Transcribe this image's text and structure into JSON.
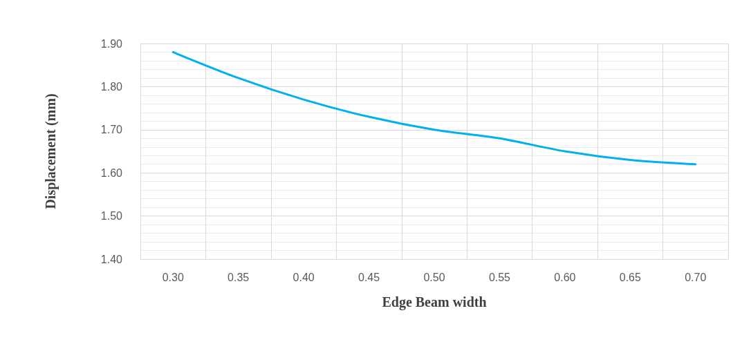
{
  "chart_data": {
    "type": "line",
    "xlabel": "Edge Beam width",
    "ylabel": "Displacement (mm)",
    "categories": [
      "0.30",
      "0.35",
      "0.40",
      "0.45",
      "0.50",
      "0.55",
      "0.60",
      "0.65",
      "0.70"
    ],
    "series": [
      {
        "color": "#00b0f0",
        "values": [
          1.88,
          1.82,
          1.77,
          1.73,
          1.7,
          1.68,
          1.65,
          1.63,
          1.62
        ]
      }
    ],
    "ylim": [
      1.4,
      1.9
    ],
    "yticks": [
      {
        "value": 1.4,
        "label": "1.40"
      },
      {
        "value": 1.5,
        "label": "1.50"
      },
      {
        "value": 1.6,
        "label": "1.60"
      },
      {
        "value": 1.7,
        "label": "1.70"
      },
      {
        "value": 1.8,
        "label": "1.80"
      },
      {
        "value": 1.9,
        "label": "1.90"
      }
    ],
    "grid": true,
    "marker": "none",
    "line_style": "solid"
  }
}
